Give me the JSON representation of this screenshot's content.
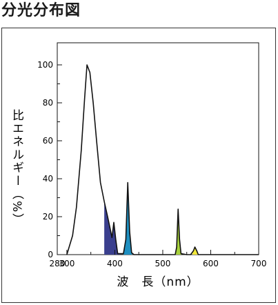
{
  "page": {
    "title": "分光分布図"
  },
  "chart_data": {
    "type": "area",
    "xlabel": "波　長（nm）",
    "ylabel": "比エネルギー（%）",
    "xlim": [
      280,
      700
    ],
    "ylim": [
      0,
      110
    ],
    "x_ticks": [
      "280",
      "300",
      "400",
      "500",
      "600",
      "700"
    ],
    "x_tick_values": [
      280,
      300,
      400,
      500,
      600,
      700
    ],
    "y_ticks": [
      "0",
      "20",
      "40",
      "60",
      "80",
      "100"
    ],
    "y_tick_values": [
      0,
      20,
      40,
      60,
      80,
      100
    ],
    "grid": false,
    "series": [
      {
        "values_x": [
          300,
          312,
          320,
          330,
          337,
          342,
          348,
          355,
          362,
          370,
          378,
          385,
          390,
          394,
          398,
          402,
          406,
          410,
          418,
          423,
          427,
          431,
          435,
          440,
          520,
          526,
          529,
          532,
          535,
          538,
          550,
          558,
          564,
          567,
          571,
          574,
          580,
          700
        ],
        "values_y": [
          0,
          10,
          25,
          55,
          82,
          100,
          96,
          80,
          60,
          38,
          28,
          20,
          14,
          9,
          17,
          8,
          0.5,
          0.5,
          0.5,
          8,
          38,
          12,
          1,
          0,
          0,
          0,
          4,
          24,
          8,
          0.5,
          0,
          0,
          2,
          4,
          2,
          0,
          0,
          0
        ]
      }
    ],
    "fill_bands": [
      {
        "from": 378,
        "to": 411,
        "color": "#3a3f8e"
      },
      {
        "from": 418,
        "to": 436,
        "color": "#1f8fc0"
      },
      {
        "from": 526,
        "to": 539,
        "color": "#a7d13c"
      },
      {
        "from": 562,
        "to": 576,
        "color": "#f2e83a"
      }
    ],
    "line_color": "#111111"
  }
}
